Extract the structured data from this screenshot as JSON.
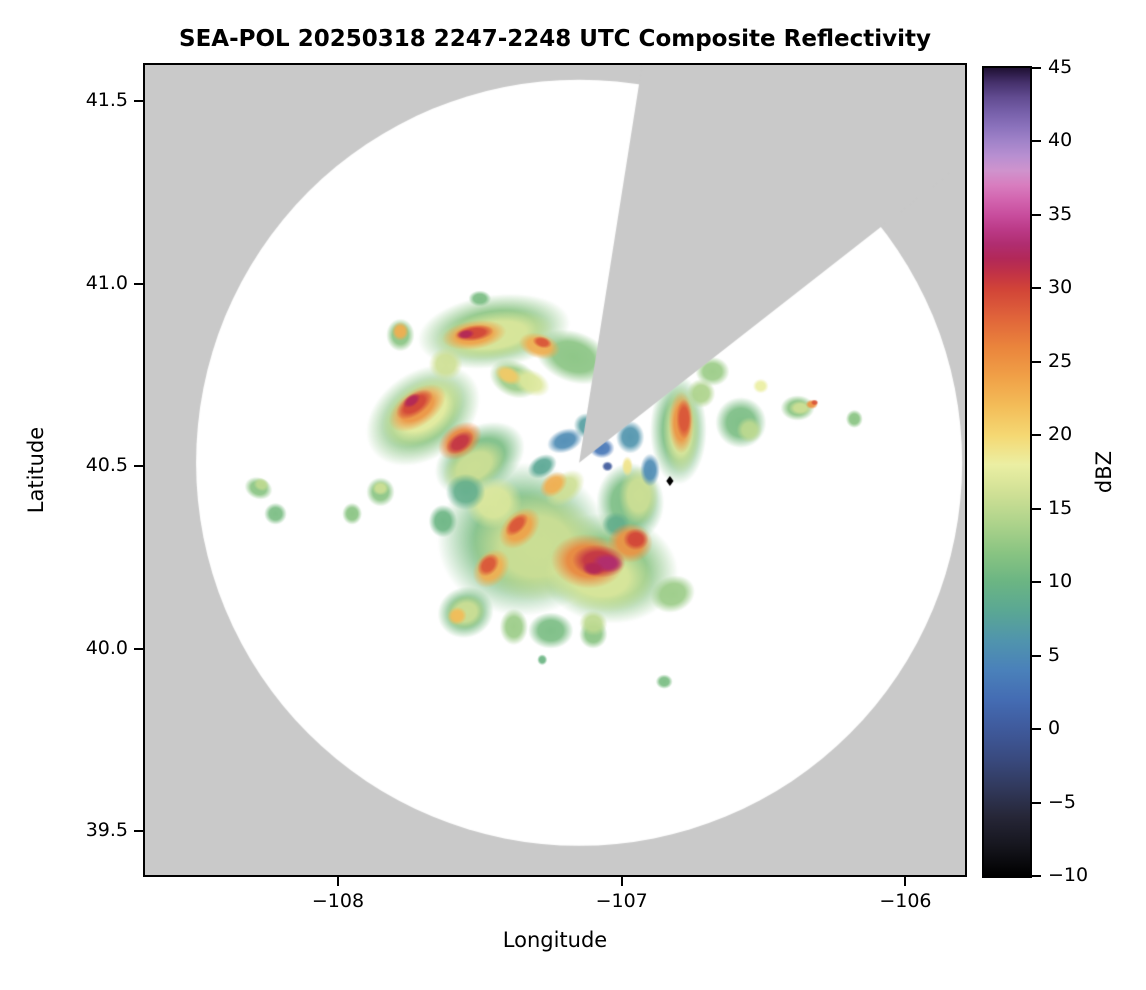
{
  "title": "SEA-POL 20250318 2247-2248 UTC Composite Reflectivity",
  "axes": {
    "xlabel": "Longitude",
    "ylabel": "Latitude",
    "xlim": [
      -108.68,
      -105.79
    ],
    "ylim": [
      39.38,
      41.6
    ],
    "x_ticks": [
      {
        "value": -108,
        "label": "−108"
      },
      {
        "value": -107,
        "label": "−107"
      },
      {
        "value": -106,
        "label": "−106"
      }
    ],
    "y_ticks": [
      {
        "value": 39.5,
        "label": "39.5"
      },
      {
        "value": 40.0,
        "label": "40.0"
      },
      {
        "value": 40.5,
        "label": "40.5"
      },
      {
        "value": 41.0,
        "label": "41.0"
      },
      {
        "value": 41.5,
        "label": "41.5"
      }
    ]
  },
  "colorbar": {
    "label": "dBZ",
    "min": -10,
    "max": 45,
    "ticks": [
      {
        "value": 45,
        "label": "45"
      },
      {
        "value": 40,
        "label": "40"
      },
      {
        "value": 35,
        "label": "35"
      },
      {
        "value": 30,
        "label": "30"
      },
      {
        "value": 25,
        "label": "25"
      },
      {
        "value": 20,
        "label": "20"
      },
      {
        "value": 15,
        "label": "15"
      },
      {
        "value": 10,
        "label": "10"
      },
      {
        "value": 5,
        "label": "5"
      },
      {
        "value": 0,
        "label": "0"
      },
      {
        "value": -5,
        "label": "−5"
      },
      {
        "value": -10,
        "label": "−10"
      }
    ]
  },
  "chart_data": {
    "type": "heatmap",
    "title": "SEA-POL 20250318 2247-2248 UTC Composite Reflectivity",
    "xlabel": "Longitude",
    "ylabel": "Latitude",
    "colorbar_label": "dBZ",
    "value_range": [
      -10,
      45
    ],
    "xlim": [
      -108.68,
      -105.79
    ],
    "ylim": [
      39.38,
      41.6
    ],
    "grid": false,
    "no_data_color": "#c9c9c9",
    "scan_area_color": "#ffffff",
    "radar_scan": {
      "center_lon": -107.15,
      "center_lat": 40.51,
      "radius_deg_lon": 1.35,
      "missing_sector_azimuth_deg": [
        9,
        52
      ]
    },
    "radar_marker": {
      "lon": -106.83,
      "lat": 40.46,
      "shape": "diamond",
      "color": "#000000"
    },
    "colormap_stops": [
      [
        -10,
        "#000000"
      ],
      [
        -8,
        "#15151d"
      ],
      [
        -6,
        "#262637"
      ],
      [
        -4,
        "#31395c"
      ],
      [
        -2,
        "#394a7f"
      ],
      [
        0,
        "#3f5a9c"
      ],
      [
        2,
        "#446cb3"
      ],
      [
        4,
        "#4a81ba"
      ],
      [
        6,
        "#5094ad"
      ],
      [
        8,
        "#5aa794"
      ],
      [
        10,
        "#6bb583"
      ],
      [
        12,
        "#89c482"
      ],
      [
        14,
        "#add38b"
      ],
      [
        16,
        "#cfe095"
      ],
      [
        18,
        "#ebefa3"
      ],
      [
        20,
        "#f5d873"
      ],
      [
        22,
        "#f3bc58"
      ],
      [
        24,
        "#f0a047"
      ],
      [
        26,
        "#ea843c"
      ],
      [
        28,
        "#e0643a"
      ],
      [
        30,
        "#d14338"
      ],
      [
        31,
        "#c23345"
      ],
      [
        32,
        "#b22858"
      ],
      [
        33,
        "#b02d70"
      ],
      [
        34,
        "#bb3a87"
      ],
      [
        35,
        "#c84d9d"
      ],
      [
        36,
        "#d263ae"
      ],
      [
        37,
        "#d87dbf"
      ],
      [
        38,
        "#cf93cd"
      ],
      [
        39,
        "#b88fd1"
      ],
      [
        40,
        "#a183c9"
      ],
      [
        41,
        "#8b72bc"
      ],
      [
        42,
        "#7760aa"
      ],
      [
        43,
        "#614b90"
      ],
      [
        44,
        "#45306b"
      ],
      [
        45,
        "#1f1033"
      ]
    ],
    "echo_cells": {
      "columns": [
        "lon",
        "lat",
        "dbz",
        "rx_deg",
        "ry_deg",
        "rot_deg"
      ],
      "rows": [
        [
          -107.45,
          40.87,
          12,
          0.27,
          0.1,
          -8
        ],
        [
          -107.17,
          40.8,
          12,
          0.14,
          0.07,
          20
        ],
        [
          -107.7,
          40.64,
          12,
          0.22,
          0.12,
          -35
        ],
        [
          -107.5,
          40.52,
          11,
          0.17,
          0.09,
          -30
        ],
        [
          -107.35,
          40.3,
          11,
          0.3,
          0.21,
          0
        ],
        [
          -107.05,
          40.22,
          12,
          0.25,
          0.15,
          8
        ],
        [
          -106.97,
          40.4,
          11,
          0.12,
          0.11,
          0
        ],
        [
          -106.8,
          40.6,
          11,
          0.1,
          0.15,
          0
        ],
        [
          -106.58,
          40.62,
          11,
          0.09,
          0.07,
          20
        ],
        [
          -106.68,
          40.76,
          13,
          0.06,
          0.04,
          0
        ],
        [
          -107.55,
          40.1,
          11,
          0.1,
          0.07,
          -20
        ],
        [
          -107.38,
          40.06,
          13,
          0.05,
          0.05,
          0
        ],
        [
          -107.25,
          40.05,
          11,
          0.08,
          0.05,
          0
        ],
        [
          -107.1,
          40.04,
          12,
          0.05,
          0.04,
          10
        ],
        [
          -106.82,
          40.15,
          13,
          0.08,
          0.05,
          -20
        ],
        [
          -107.85,
          40.43,
          12,
          0.05,
          0.04,
          0
        ],
        [
          -108.28,
          40.44,
          12,
          0.05,
          0.03,
          20
        ],
        [
          -108.22,
          40.37,
          11,
          0.04,
          0.03,
          0
        ],
        [
          -107.95,
          40.37,
          12,
          0.035,
          0.03,
          0
        ],
        [
          -106.38,
          40.66,
          12,
          0.06,
          0.035,
          0
        ],
        [
          -106.18,
          40.63,
          12,
          0.03,
          0.025,
          0
        ],
        [
          -107.78,
          40.86,
          12,
          0.05,
          0.045,
          0
        ],
        [
          -107.5,
          40.96,
          11,
          0.04,
          0.022,
          0
        ],
        [
          -106.85,
          39.91,
          11,
          0.03,
          0.02,
          0
        ],
        [
          -107.28,
          39.97,
          10,
          0.018,
          0.015,
          0
        ],
        [
          -107.38,
          40.74,
          13,
          0.09,
          0.05,
          25
        ],
        [
          -106.72,
          40.7,
          14,
          0.05,
          0.04,
          0
        ],
        [
          -107.45,
          40.86,
          17,
          0.21,
          0.065,
          -8
        ],
        [
          -107.7,
          40.65,
          18,
          0.16,
          0.08,
          -35
        ],
        [
          -107.52,
          40.5,
          16,
          0.12,
          0.06,
          -30
        ],
        [
          -107.3,
          40.28,
          16,
          0.23,
          0.15,
          0
        ],
        [
          -107.08,
          40.2,
          17,
          0.19,
          0.1,
          8
        ],
        [
          -106.94,
          40.42,
          16,
          0.07,
          0.08,
          0
        ],
        [
          -106.79,
          40.6,
          17,
          0.065,
          0.12,
          0
        ],
        [
          -107.55,
          40.1,
          16,
          0.07,
          0.045,
          -20
        ],
        [
          -107.45,
          40.4,
          17,
          0.1,
          0.07,
          -20
        ],
        [
          -107.2,
          40.44,
          16,
          0.08,
          0.04,
          -40
        ],
        [
          -106.37,
          40.66,
          16,
          0.04,
          0.02,
          0
        ],
        [
          -107.85,
          40.44,
          16,
          0.03,
          0.02,
          0
        ],
        [
          -108.27,
          40.45,
          15,
          0.028,
          0.018,
          20
        ],
        [
          -107.62,
          40.78,
          16,
          0.06,
          0.045,
          0
        ],
        [
          -107.32,
          40.73,
          17,
          0.07,
          0.035,
          25
        ],
        [
          -106.51,
          40.72,
          18,
          0.028,
          0.02,
          0
        ],
        [
          -107.1,
          40.07,
          15,
          0.05,
          0.035,
          10
        ],
        [
          -106.55,
          40.6,
          15,
          0.045,
          0.035,
          0
        ],
        [
          -106.98,
          40.5,
          19,
          0.02,
          0.028,
          0
        ],
        [
          -107.55,
          40.43,
          9,
          0.07,
          0.05,
          0
        ],
        [
          -107.63,
          40.35,
          10,
          0.05,
          0.045,
          0
        ],
        [
          -107.02,
          40.34,
          9,
          0.05,
          0.035,
          0
        ],
        [
          -107.2,
          40.57,
          5,
          0.065,
          0.032,
          -20
        ],
        [
          -107.07,
          40.55,
          3,
          0.045,
          0.028,
          0
        ],
        [
          -106.97,
          40.58,
          6,
          0.05,
          0.045,
          0
        ],
        [
          -107.12,
          40.61,
          7,
          0.05,
          0.035,
          30
        ],
        [
          -107.28,
          40.5,
          8,
          0.055,
          0.03,
          -30
        ],
        [
          -106.9,
          40.49,
          5,
          0.035,
          0.045,
          0
        ],
        [
          -107.05,
          40.5,
          0,
          0.02,
          0.014,
          0
        ],
        [
          -107.52,
          40.86,
          24,
          0.115,
          0.04,
          -8
        ],
        [
          -107.29,
          40.83,
          23,
          0.075,
          0.035,
          15
        ],
        [
          -107.72,
          40.66,
          25,
          0.115,
          0.05,
          -35
        ],
        [
          -107.57,
          40.57,
          26,
          0.085,
          0.045,
          -35
        ],
        [
          -107.12,
          40.24,
          26,
          0.13,
          0.075,
          5
        ],
        [
          -106.97,
          40.29,
          25,
          0.08,
          0.055,
          0
        ],
        [
          -107.36,
          40.33,
          24,
          0.085,
          0.045,
          -45
        ],
        [
          -107.46,
          40.22,
          23,
          0.075,
          0.045,
          -50
        ],
        [
          -106.79,
          40.62,
          25,
          0.045,
          0.085,
          0
        ],
        [
          -107.24,
          40.45,
          23,
          0.055,
          0.03,
          -40
        ],
        [
          -106.33,
          40.67,
          25,
          0.022,
          0.013,
          0
        ],
        [
          -107.78,
          40.87,
          23,
          0.03,
          0.026,
          0
        ],
        [
          -107.58,
          40.09,
          22,
          0.035,
          0.025,
          -20
        ],
        [
          -107.4,
          40.75,
          21,
          0.05,
          0.025,
          25
        ],
        [
          -107.52,
          40.865,
          30,
          0.07,
          0.022,
          -8
        ],
        [
          -107.73,
          40.67,
          30,
          0.075,
          0.03,
          -35
        ],
        [
          -107.57,
          40.565,
          31,
          0.055,
          0.026,
          -35
        ],
        [
          -107.08,
          40.24,
          31,
          0.095,
          0.045,
          5
        ],
        [
          -106.95,
          40.3,
          30,
          0.045,
          0.03,
          0
        ],
        [
          -107.37,
          40.34,
          29,
          0.05,
          0.022,
          -45
        ],
        [
          -107.47,
          40.23,
          29,
          0.045,
          0.026,
          -50
        ],
        [
          -106.78,
          40.63,
          29,
          0.028,
          0.055,
          0
        ],
        [
          -106.32,
          40.675,
          29,
          0.013,
          0.008,
          0
        ],
        [
          -107.28,
          40.84,
          29,
          0.035,
          0.016,
          15
        ],
        [
          -107.05,
          40.235,
          33,
          0.055,
          0.026,
          5
        ],
        [
          -107.55,
          40.862,
          32,
          0.032,
          0.013,
          -8
        ],
        [
          -107.74,
          40.68,
          32,
          0.035,
          0.016,
          -35
        ],
        [
          -107.1,
          40.22,
          32,
          0.04,
          0.02,
          5
        ]
      ]
    }
  }
}
